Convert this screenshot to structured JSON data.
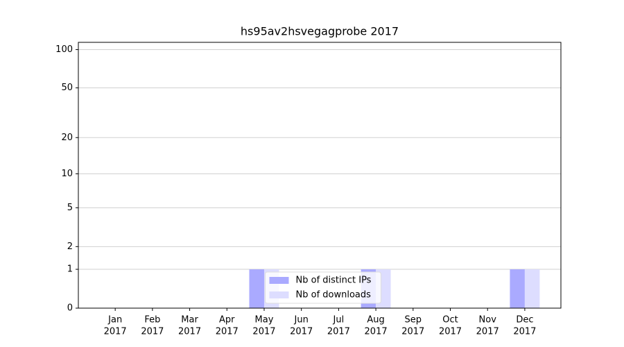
{
  "chart_data": {
    "type": "bar",
    "title": "hs95av2hsvegagprobe 2017",
    "categories": [
      [
        "Jan",
        "2017"
      ],
      [
        "Feb",
        "2017"
      ],
      [
        "Mar",
        "2017"
      ],
      [
        "Apr",
        "2017"
      ],
      [
        "May",
        "2017"
      ],
      [
        "Jun",
        "2017"
      ],
      [
        "Jul",
        "2017"
      ],
      [
        "Aug",
        "2017"
      ],
      [
        "Sep",
        "2017"
      ],
      [
        "Oct",
        "2017"
      ],
      [
        "Nov",
        "2017"
      ],
      [
        "Dec",
        "2017"
      ]
    ],
    "series": [
      {
        "name": "Nb of distinct IPs",
        "color": "#aaaaff",
        "values": [
          0,
          0,
          0,
          0,
          1,
          0,
          0,
          1,
          0,
          0,
          0,
          1
        ]
      },
      {
        "name": "Nb of downloads",
        "color": "#ddddff",
        "values": [
          0,
          0,
          0,
          0,
          1,
          0,
          0,
          1,
          0,
          0,
          0,
          1
        ]
      }
    ],
    "yscale": "log1p",
    "ylim": [
      0,
      114
    ],
    "yticks": [
      0,
      1,
      2,
      5,
      10,
      20,
      50,
      100
    ],
    "grid": true,
    "legend": "lower center"
  }
}
